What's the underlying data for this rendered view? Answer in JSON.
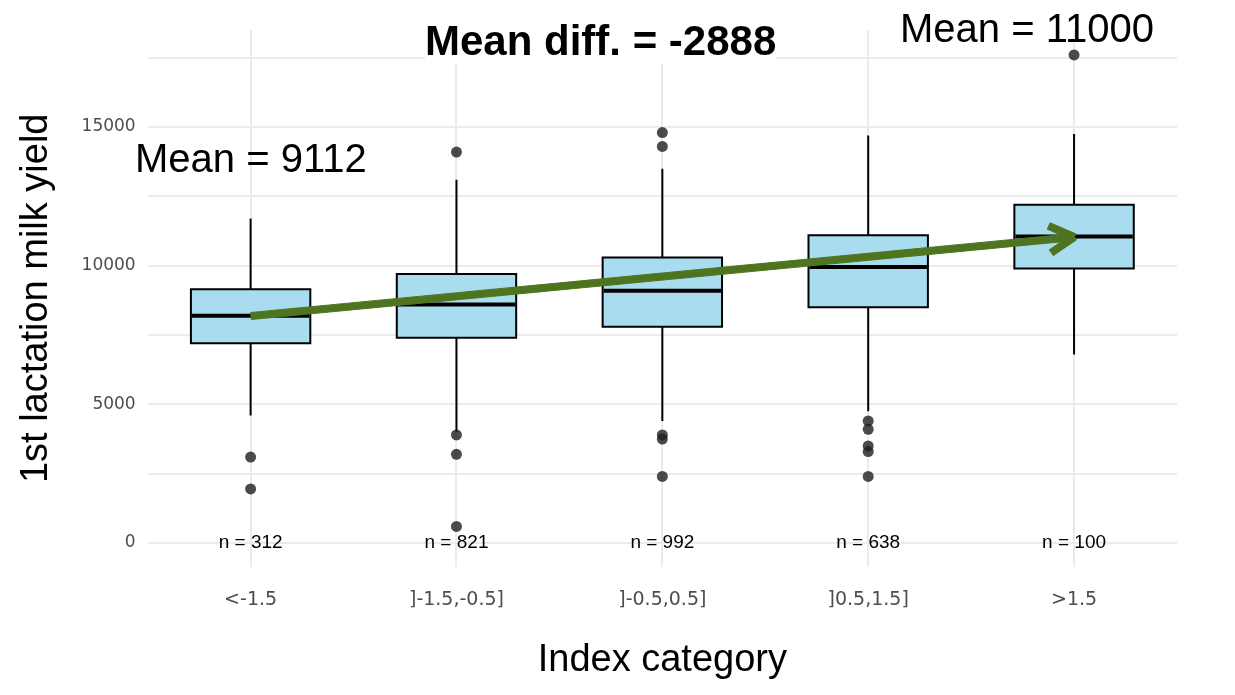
{
  "chart_data": {
    "type": "box",
    "title": "Mean diff. = -2888",
    "xlabel": "Index category",
    "ylabel": "1st lactation milk yield",
    "categories": [
      "<-1.5",
      "]-1.5,-0.5]",
      "]-0.5,0.5]",
      "]0.5,1.5]",
      ">1.5"
    ],
    "color": "#a8dcee",
    "boxes": [
      {
        "low": 4600,
        "q1": 7200,
        "median": 8200,
        "q3": 9150,
        "high": 11700,
        "outliers": [
          3100,
          1950
        ]
      },
      {
        "low": 4000,
        "q1": 7400,
        "median": 8600,
        "q3": 9700,
        "high": 13100,
        "outliers": [
          14100,
          3900,
          3200,
          600
        ]
      },
      {
        "low": 4400,
        "q1": 7800,
        "median": 9100,
        "q3": 10300,
        "high": 13500,
        "outliers": [
          14800,
          14300,
          3900,
          3750,
          2400
        ]
      },
      {
        "low": 4750,
        "q1": 8500,
        "median": 9950,
        "q3": 11100,
        "high": 14700,
        "outliers": [
          4400,
          4100,
          3500,
          3300,
          2400
        ]
      },
      {
        "low": 6800,
        "q1": 9900,
        "median": 11050,
        "q3": 12200,
        "high": 14750,
        "outliers": [
          17600
        ]
      }
    ],
    "ylim": [
      -850,
      18500
    ],
    "yticks": [
      0,
      {
        "value": 2500,
        "label": null
      },
      5000,
      {
        "value": 7500,
        "label": null
      },
      10000,
      {
        "value": 12500,
        "label": null
      },
      15000,
      {
        "value": 17500,
        "label": null
      }
    ],
    "grid": true,
    "legend": false,
    "annotations": [
      "Mean = 9112",
      "Mean = 11000",
      "n = 312",
      "n = 821",
      "n = 992",
      "n = 638",
      "n = 100"
    ]
  }
}
